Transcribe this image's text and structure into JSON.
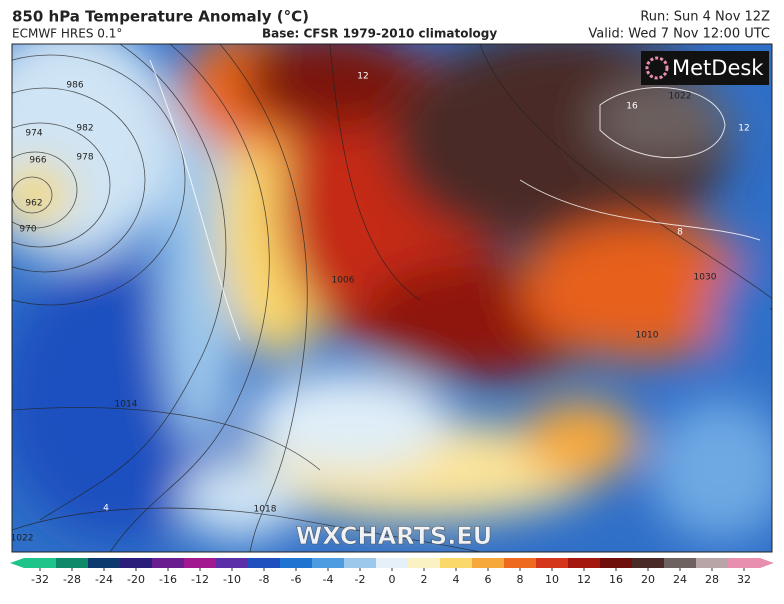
{
  "header": {
    "title": "850 hPa Temperature Anomaly (°C)",
    "model": "ECMWF HRES 0.1°",
    "base": "Base: CFSR 1979-2010 climatology",
    "run": "Run: Sun 4 Nov 12Z",
    "valid": "Valid: Wed 7 Nov 12:00 UTC"
  },
  "map": {
    "logo": "MetDesk",
    "watermark": "WXCHARTS.EU",
    "contour_labels": [
      "986",
      "982",
      "978",
      "974",
      "966",
      "962",
      "970",
      "1014",
      "1018",
      "1022",
      "1006",
      "1010",
      "1030",
      "1022",
      "16",
      "12",
      "12",
      "8",
      "4"
    ]
  },
  "colorbar": {
    "ticks": [
      -32,
      -28,
      -24,
      -20,
      -16,
      -12,
      -10,
      -8,
      -6,
      -4,
      -2,
      0,
      2,
      4,
      6,
      8,
      10,
      12,
      16,
      20,
      24,
      28,
      32
    ],
    "colors": [
      "#1fc48a",
      "#0e8a6a",
      "#0d3a6e",
      "#2b1e7a",
      "#6a1d8e",
      "#a2198f",
      "#5a2fa8",
      "#1f4fbf",
      "#1f73d1",
      "#4d9be0",
      "#9cc8ec",
      "#e6f0f8",
      "#fbf2c4",
      "#fbd86a",
      "#f7a83a",
      "#ee6a1f",
      "#d3361a",
      "#a3170f",
      "#6e0f0c",
      "#4a2a26",
      "#6d6260",
      "#b7a5a8",
      "#e88fb0"
    ]
  }
}
